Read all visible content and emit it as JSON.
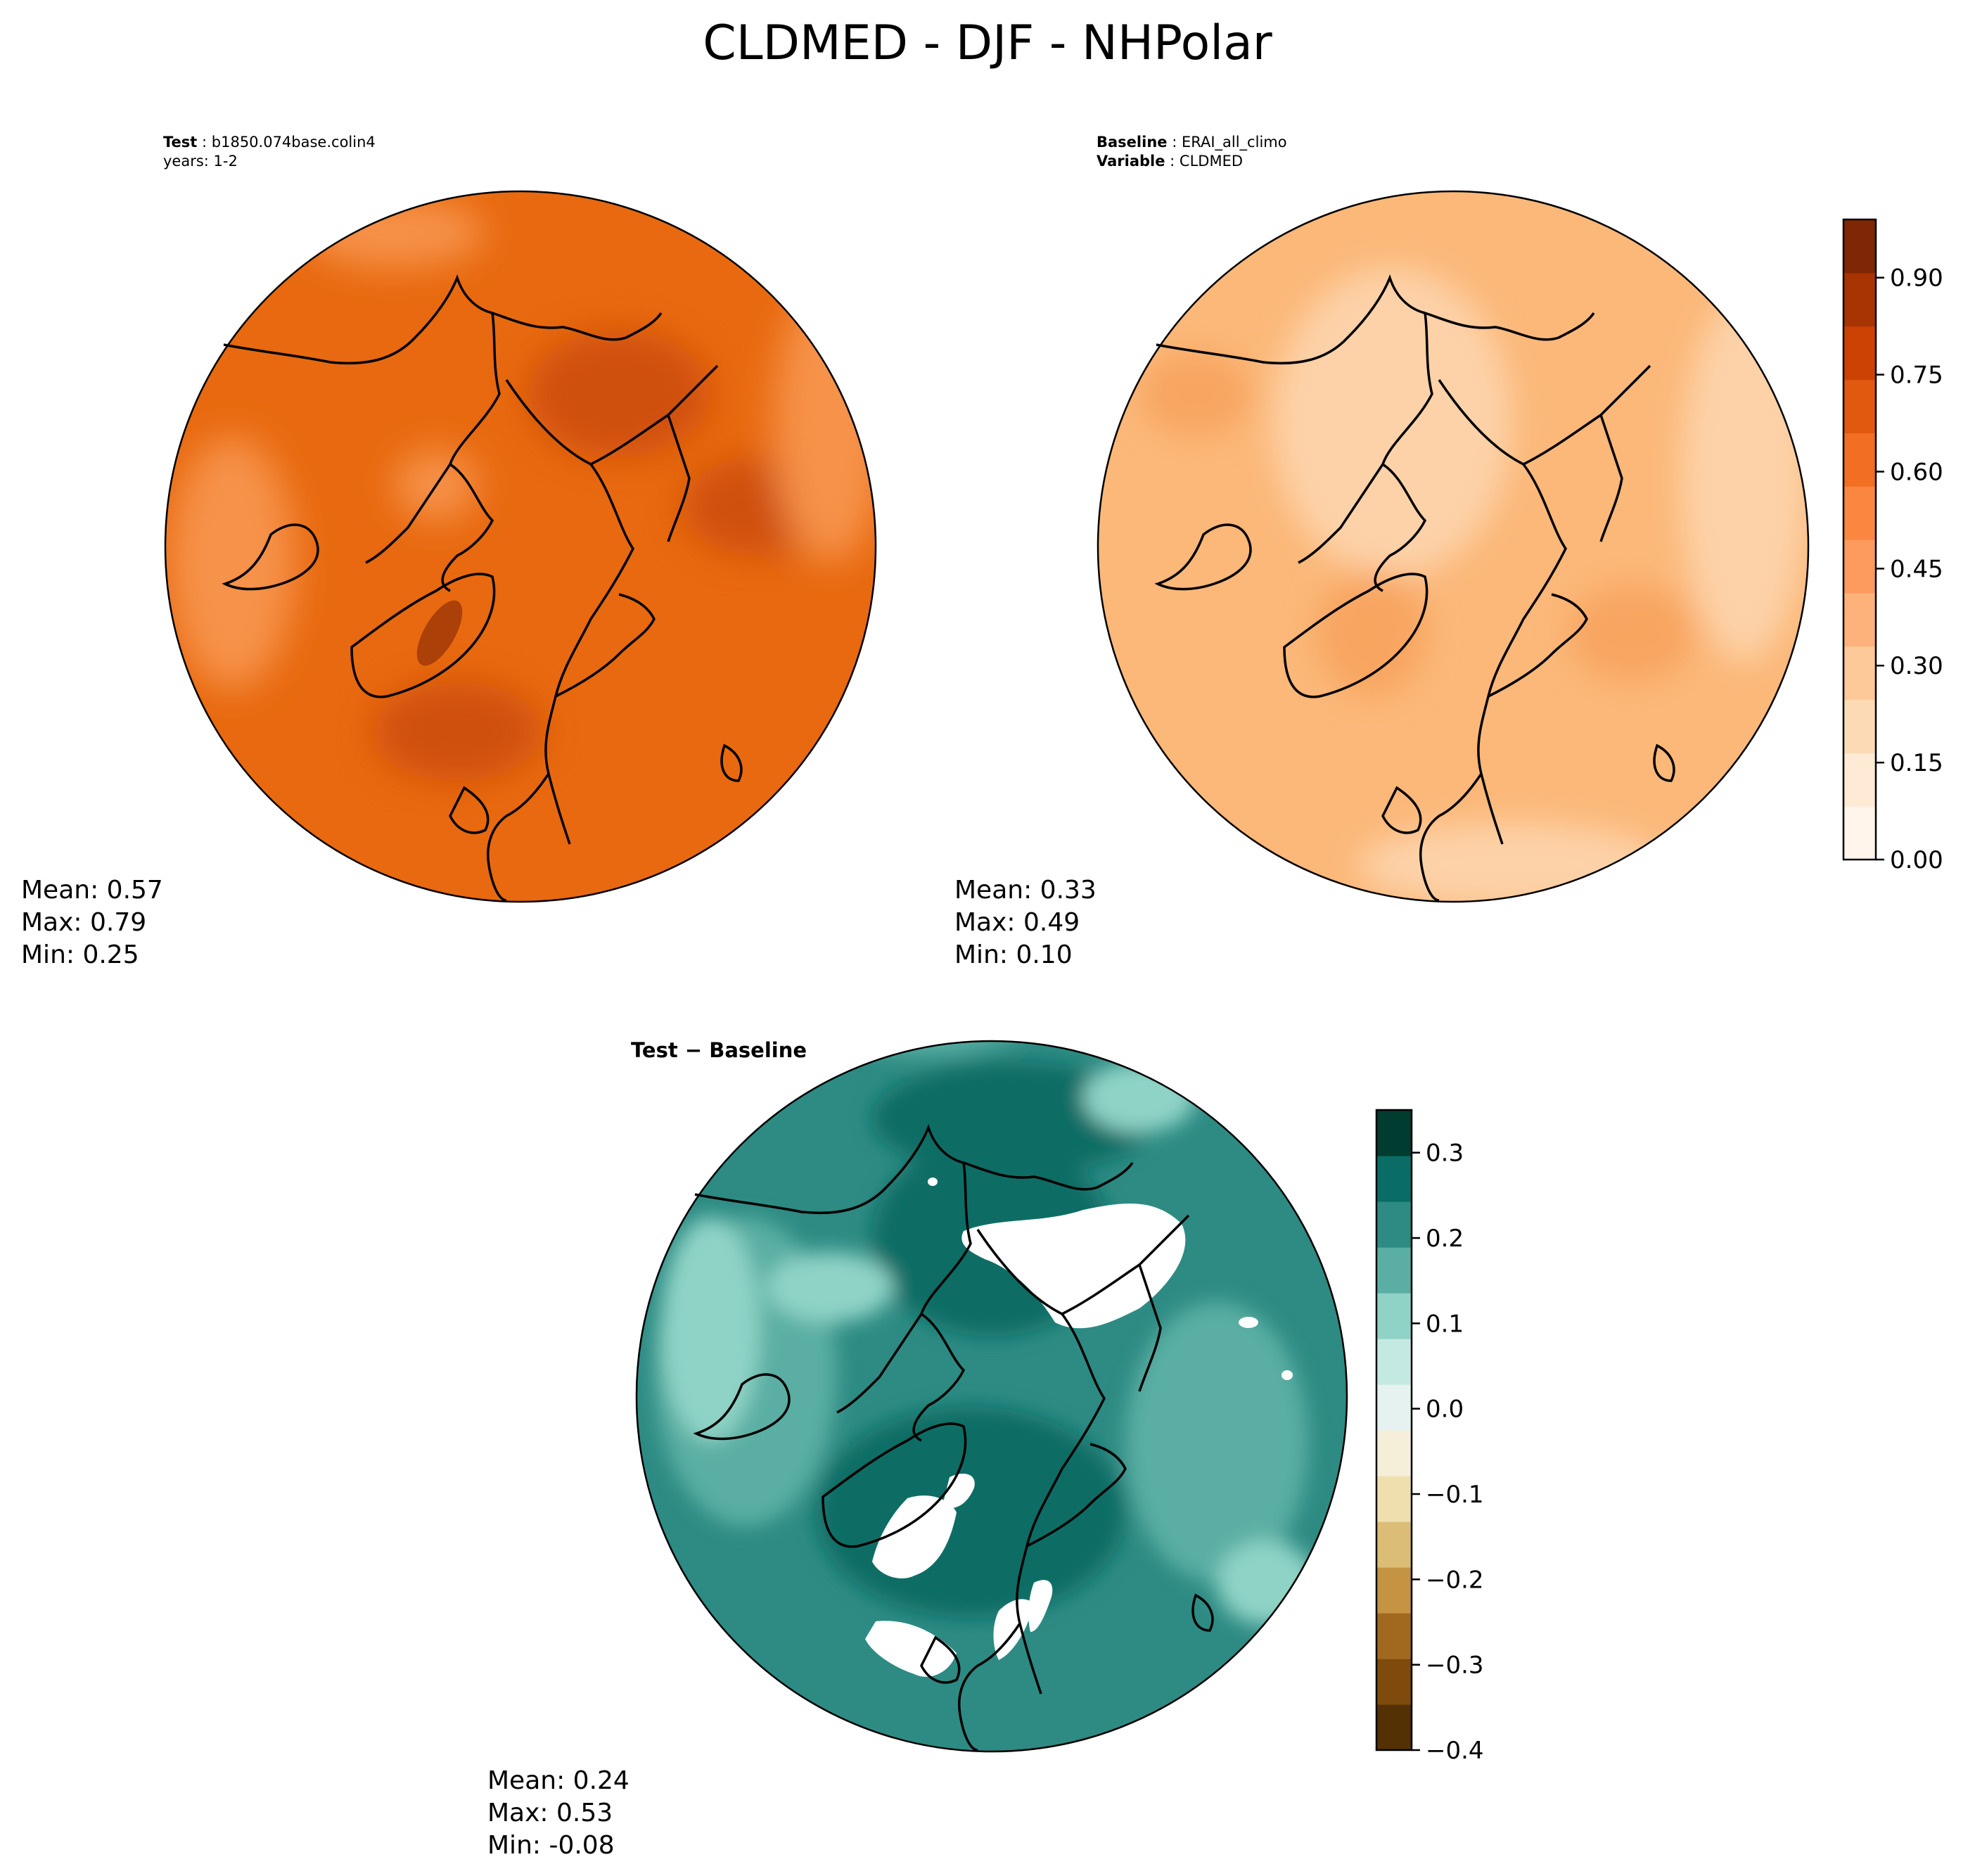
{
  "figure": {
    "title": "CLDMED - DJF - NHPolar"
  },
  "test_panel": {
    "label": "Test",
    "name": "b1850.074base.colin4",
    "years": "years: 1-2",
    "stats": {
      "mean": "Mean:  0.57",
      "max": "Max:  0.79",
      "min": "Min:  0.25"
    }
  },
  "baseline_panel": {
    "label": "Baseline",
    "name": "ERAI_all_climo",
    "variable_label": "Variable",
    "variable": "CLDMED",
    "stats": {
      "mean": "Mean:  0.33",
      "max": "Max:  0.49",
      "min": "Min:  0.10"
    }
  },
  "diff_panel": {
    "title": "Test − Baseline",
    "stats": {
      "mean": "Mean:  0.24",
      "max": "Max:  0.53",
      "min": "Min: -0.08"
    }
  },
  "colors": {
    "oranges": [
      "#fff5eb",
      "#feead5",
      "#fddab6",
      "#fdc998",
      "#fdb27b",
      "#fd9b5e",
      "#fb8640",
      "#f16e22",
      "#e1580f",
      "#cc4205",
      "#a83303",
      "#7f2704"
    ],
    "brbg": [
      "#543005",
      "#7e4b0c",
      "#a16820",
      "#c49443",
      "#dbbd76",
      "#efdfaf",
      "#f5efd9",
      "#e6f2ef",
      "#c4e9e2",
      "#8fd3c6",
      "#5aaea3",
      "#2d8b83",
      "#0a6d65",
      "#003c30"
    ],
    "test_base": "#e8690f",
    "test_dark": "#cf4f09",
    "test_light": "#f6924a",
    "base_base": "#fbb879",
    "base_light": "#fdd2a8",
    "base_dark": "#f8a560",
    "diff_base": "#2d8b83",
    "diff_dark": "#0a6d65",
    "diff_light": "#5aaea3",
    "diff_pale": "#8fd3c6"
  },
  "chart_data": [
    {
      "type": "heatmap",
      "panel": "test",
      "projection": "north-polar-stereographic",
      "variable": "CLDMED",
      "season": "DJF",
      "mean": 0.57,
      "max": 0.79,
      "min": 0.25,
      "colorbar": {
        "colormap": "Oranges",
        "vmin": 0.0,
        "vmax": 0.99,
        "levels": 12,
        "tick_values": [
          0.0,
          0.15,
          0.3,
          0.45,
          0.6,
          0.75,
          0.9
        ],
        "tick_labels": [
          "0.00",
          "0.15",
          "0.30",
          "0.45",
          "0.60",
          "0.75",
          "0.90"
        ]
      }
    },
    {
      "type": "heatmap",
      "panel": "baseline",
      "projection": "north-polar-stereographic",
      "variable": "CLDMED",
      "season": "DJF",
      "mean": 0.33,
      "max": 0.49,
      "min": 0.1,
      "colorbar": {
        "colormap": "Oranges",
        "vmin": 0.0,
        "vmax": 0.99,
        "levels": 12,
        "tick_values": [
          0.0,
          0.15,
          0.3,
          0.45,
          0.6,
          0.75,
          0.9
        ],
        "tick_labels": [
          "0.00",
          "0.15",
          "0.30",
          "0.45",
          "0.60",
          "0.75",
          "0.90"
        ]
      }
    },
    {
      "type": "heatmap",
      "panel": "difference",
      "projection": "north-polar-stereographic",
      "variable": "CLDMED",
      "season": "DJF",
      "mean": 0.24,
      "max": 0.53,
      "min": -0.08,
      "colorbar": {
        "colormap": "BrBG",
        "vmin": -0.4,
        "vmax": 0.35,
        "levels": 14,
        "tick_values": [
          -0.4,
          -0.3,
          -0.2,
          -0.1,
          0.0,
          0.1,
          0.2,
          0.3
        ],
        "tick_labels": [
          "−0.4",
          "−0.3",
          "−0.2",
          "−0.1",
          "0.0",
          "0.1",
          "0.2",
          "0.3"
        ]
      }
    }
  ]
}
